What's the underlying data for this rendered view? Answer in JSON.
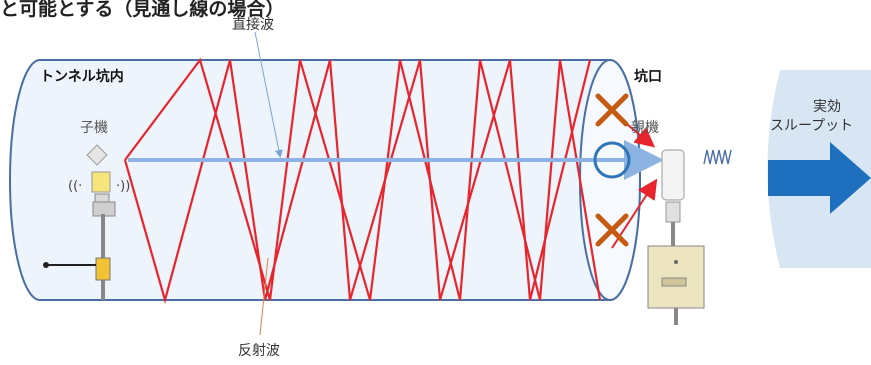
{
  "caption": "と可能とする（見通し線の場合）",
  "labels": {
    "direct_wave": "直接波",
    "reflected_wave": "反射波",
    "tunnel_inside": "トンネル坑内",
    "tunnel_mouth": "坑口",
    "child_unit": "子機",
    "parent_unit": "親機",
    "effective_line1": "実効",
    "effective_line2": "スループット"
  },
  "colors": {
    "tunnel_fill": "#eef4fb",
    "tunnel_stroke": "#4a6fa5",
    "reflection": "#e8242c",
    "direct_beam": "#8db3e2",
    "cross_mark": "#c55a11",
    "circle_mark": "#2e75b6",
    "throughput_arrow": "#1f6fbf",
    "throughput_panel": "#d8e6f3"
  }
}
